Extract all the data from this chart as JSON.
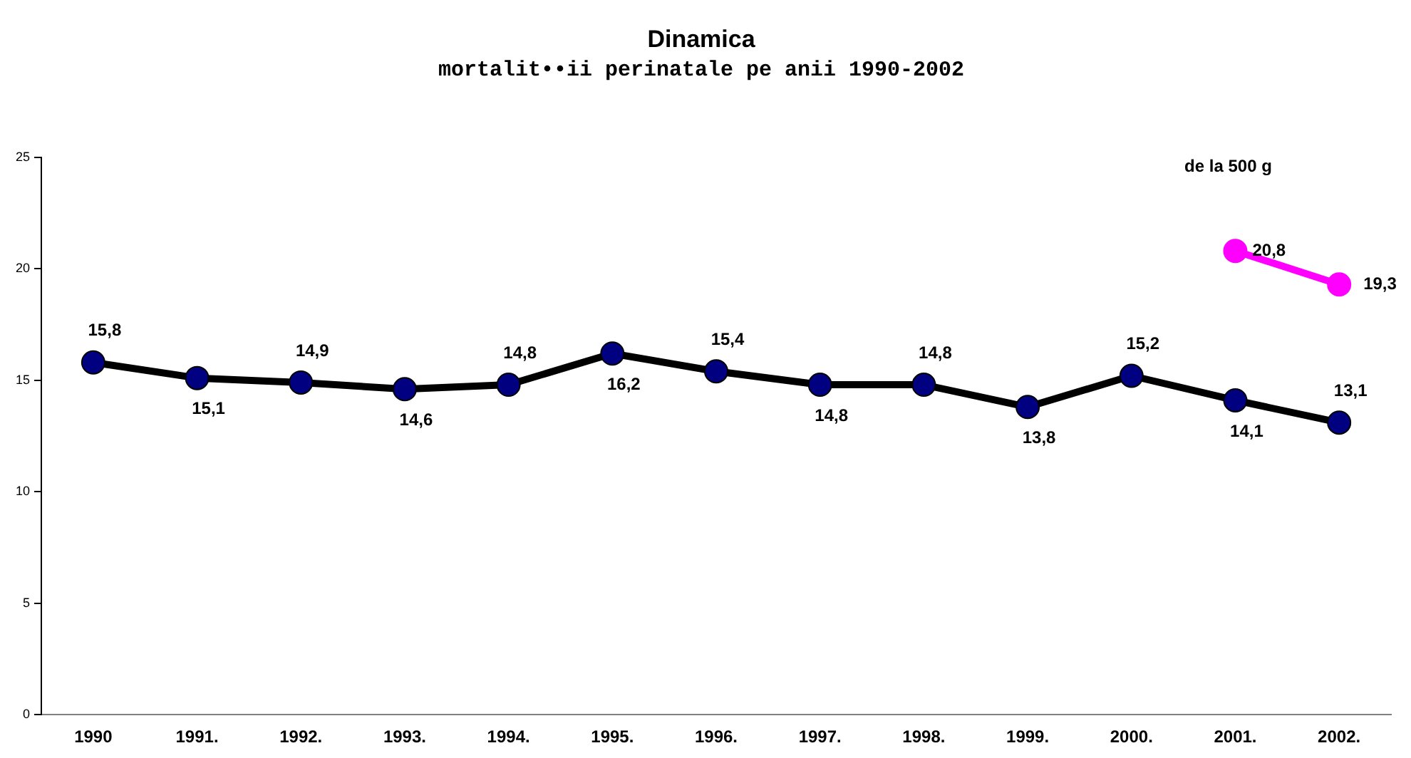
{
  "chart_data": {
    "type": "line",
    "title": "Dinamica",
    "subtitle": "mortalit••ii perinatale pe anii 1990-2002",
    "categories": [
      "1990",
      "1991.",
      "1992.",
      "1993.",
      "1994.",
      "1995.",
      "1996.",
      "1997.",
      "1998.",
      "1999.",
      "2000.",
      "2001.",
      "2002."
    ],
    "series": [
      {
        "color": "#000080",
        "values": [
          15.8,
          15.1,
          14.9,
          14.6,
          14.8,
          16.2,
          15.4,
          14.8,
          14.8,
          13.8,
          15.2,
          14.1,
          13.1
        ],
        "value_labels": [
          "15,8",
          "15,1",
          "14,9",
          "14,6",
          "14,8",
          "16,2",
          "15,4",
          "14,8",
          "14,8",
          "13,8",
          "15,2",
          "14,1",
          "13,1"
        ]
      },
      {
        "name": "de la 500 g",
        "color": "#ff00ff",
        "values": [
          null,
          null,
          null,
          null,
          null,
          null,
          null,
          null,
          null,
          null,
          null,
          20.8,
          19.3
        ],
        "value_labels": [
          null,
          null,
          null,
          null,
          null,
          null,
          null,
          null,
          null,
          null,
          null,
          "20,8",
          "19,3"
        ]
      }
    ],
    "ylim": [
      0,
      25
    ],
    "yticks": [
      0,
      5,
      10,
      15,
      20,
      25
    ],
    "grid": false,
    "legend": false,
    "marker": "circle",
    "line_style": "solid"
  }
}
